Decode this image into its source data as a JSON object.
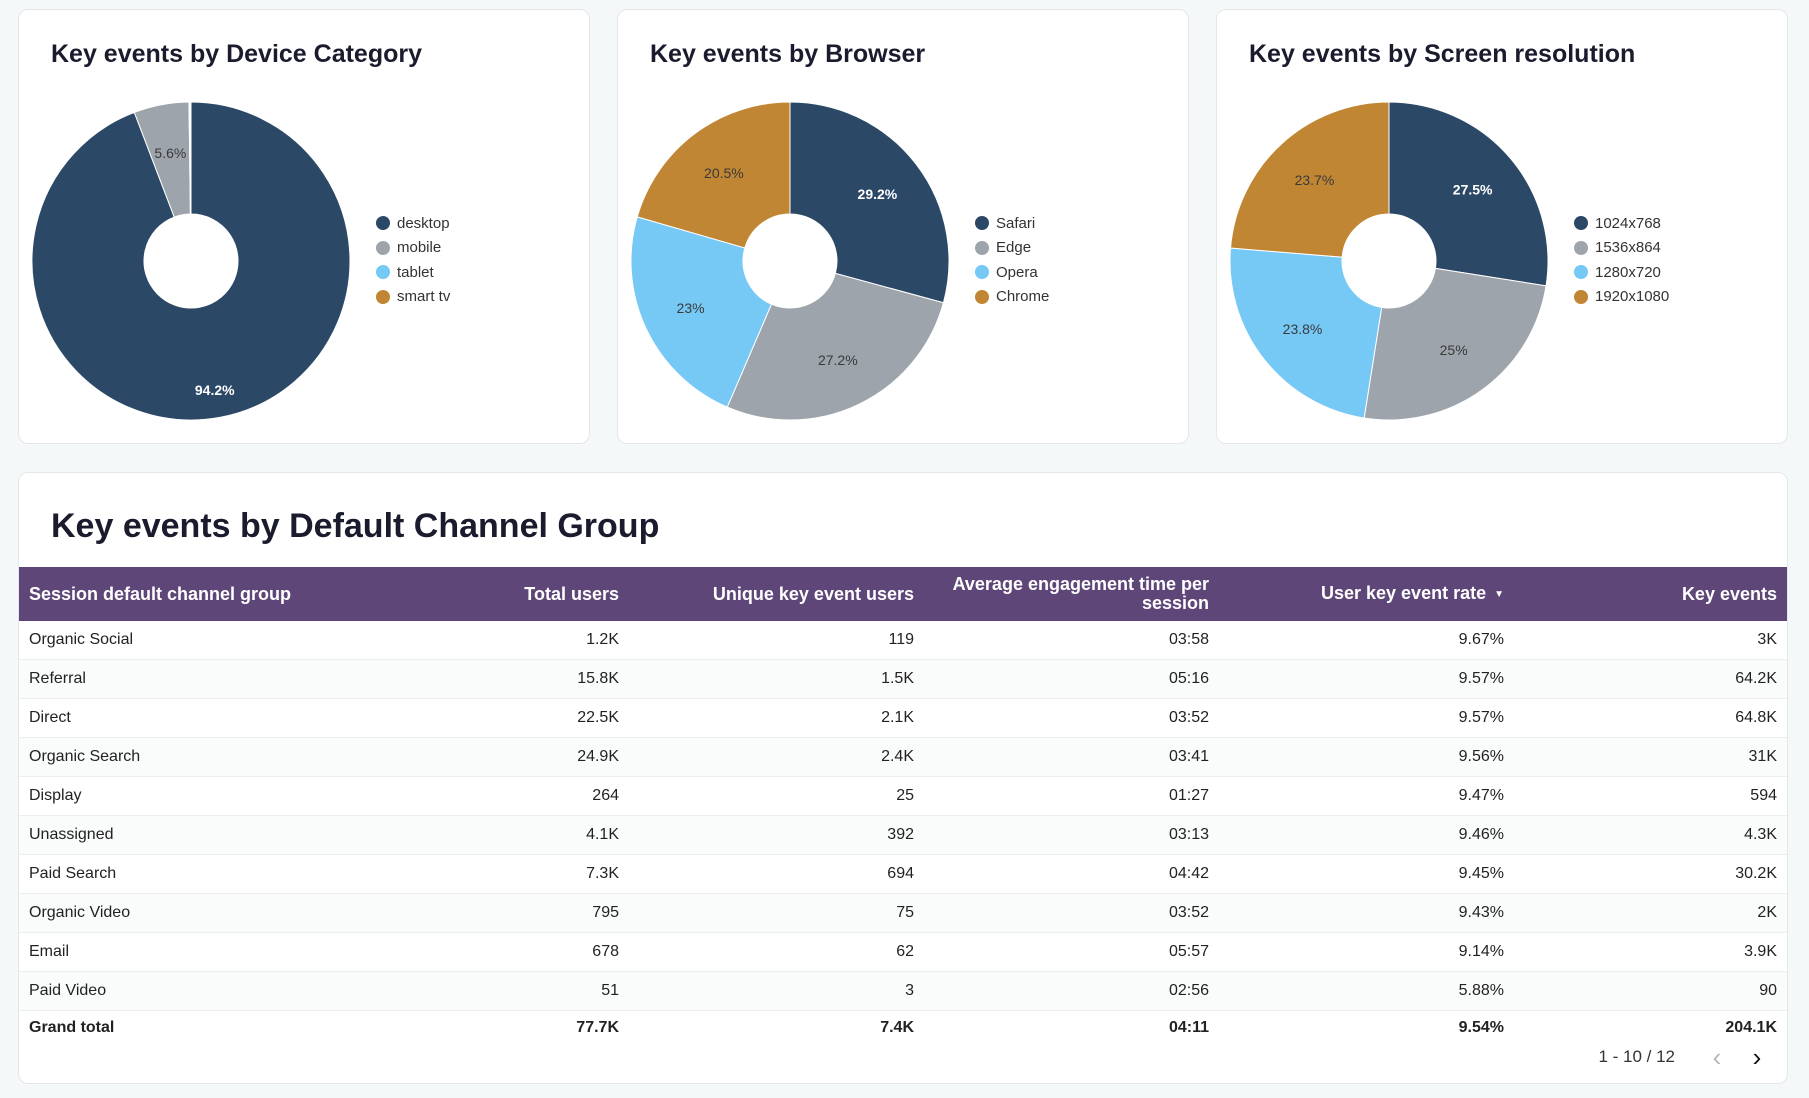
{
  "colors": {
    "navy": "#2c4867",
    "gray": "#9ea4ab",
    "lightblue": "#76c8f5",
    "gold": "#c08633",
    "header": "#5e4778"
  },
  "chart_data": [
    {
      "type": "pie",
      "title": "Key events by Device Category",
      "legend_position": "right",
      "categories": [
        "desktop",
        "mobile",
        "tablet",
        "smart tv"
      ],
      "values": [
        94.2,
        5.6,
        0.1,
        0.1
      ],
      "labels": [
        "94.2%",
        "5.6%",
        "",
        ""
      ],
      "colors": [
        "#2c4867",
        "#9ea4ab",
        "#76c8f5",
        "#c08633"
      ]
    },
    {
      "type": "pie",
      "title": "Key events by Browser",
      "legend_position": "right",
      "categories": [
        "Safari",
        "Edge",
        "Opera",
        "Chrome"
      ],
      "values": [
        29.2,
        27.2,
        23,
        20.5
      ],
      "labels": [
        "29.2%",
        "27.2%",
        "23%",
        "20.5%"
      ],
      "colors": [
        "#2c4867",
        "#9ea4ab",
        "#76c8f5",
        "#c08633"
      ]
    },
    {
      "type": "pie",
      "title": "Key events by Screen resolution",
      "legend_position": "right",
      "categories": [
        "1024x768",
        "1536x864",
        "1280x720",
        "1920x1080"
      ],
      "values": [
        27.5,
        25,
        23.8,
        23.7
      ],
      "labels": [
        "27.5%",
        "25%",
        "23.8%",
        "23.7%"
      ],
      "colors": [
        "#2c4867",
        "#9ea4ab",
        "#76c8f5",
        "#c08633"
      ]
    }
  ],
  "table": {
    "title": "Key events by Default Channel Group",
    "columns": [
      "Session default channel group",
      "Total users",
      "Unique key event users",
      "Average engagement time per session",
      "User key event rate",
      "Key events"
    ],
    "sort_indicator": "▼",
    "rows": [
      [
        "Organic Social",
        "1.2K",
        "119",
        "03:58",
        "9.67%",
        "3K"
      ],
      [
        "Referral",
        "15.8K",
        "1.5K",
        "05:16",
        "9.57%",
        "64.2K"
      ],
      [
        "Direct",
        "22.5K",
        "2.1K",
        "03:52",
        "9.57%",
        "64.8K"
      ],
      [
        "Organic Search",
        "24.9K",
        "2.4K",
        "03:41",
        "9.56%",
        "31K"
      ],
      [
        "Display",
        "264",
        "25",
        "01:27",
        "9.47%",
        "594"
      ],
      [
        "Unassigned",
        "4.1K",
        "392",
        "03:13",
        "9.46%",
        "4.3K"
      ],
      [
        "Paid Search",
        "7.3K",
        "694",
        "04:42",
        "9.45%",
        "30.2K"
      ],
      [
        "Organic Video",
        "795",
        "75",
        "03:52",
        "9.43%",
        "2K"
      ],
      [
        "Email",
        "678",
        "62",
        "05:57",
        "9.14%",
        "3.9K"
      ],
      [
        "Paid Video",
        "51",
        "3",
        "02:56",
        "5.88%",
        "90"
      ]
    ],
    "total": [
      "Grand total",
      "77.7K",
      "7.4K",
      "04:11",
      "9.54%",
      "204.1K"
    ]
  },
  "pagination": {
    "label": "1 - 10 / 12",
    "prev_icon": "‹",
    "next_icon": "›"
  }
}
